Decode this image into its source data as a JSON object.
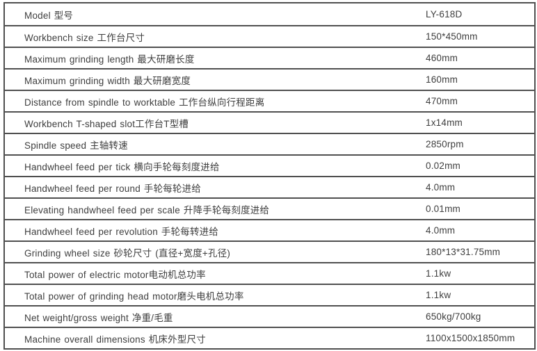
{
  "table": {
    "description": "Machine specification table",
    "model_value": "LY-618D",
    "colors": {
      "line": "#4f4f4f",
      "text": "#3e3e3e",
      "background": "#ffffff"
    },
    "rows": [
      {
        "label": "Model 型号",
        "value": "LY-618D"
      },
      {
        "label": "Workbench size 工作台尺寸",
        "value": "150*450mm"
      },
      {
        "label": "Maximum grinding length 最大研磨长度",
        "value": "460mm"
      },
      {
        "label": "Maximum grinding width 最大研磨宽度",
        "value": "160mm"
      },
      {
        "label": "Distance from spindle to worktable 工作台纵向行程距离",
        "value": "470mm"
      },
      {
        "label": "Workbench T-shaped slot工作台T型槽",
        "value": "1x14mm"
      },
      {
        "label": "Spindle speed 主轴转速",
        "value": "2850rpm"
      },
      {
        "label": "Handwheel feed per tick 横向手轮每刻度进给",
        "value": "0.02mm"
      },
      {
        "label": "Handwheel feed per round 手轮每轮进给",
        "value": "4.0mm"
      },
      {
        "label": "Elevating handwheel feed per scale 升降手轮每刻度进给",
        "value": "0.01mm"
      },
      {
        "label": "Handwheel feed per revolution 手轮每转进给",
        "value": "4.0mm"
      },
      {
        "label": "Grinding wheel size 砂轮尺寸 (直径+宽度+孔径)",
        "value": "180*13*31.75mm"
      },
      {
        "label": "Total power of electric motor电动机总功率",
        "value": "1.1kw"
      },
      {
        "label": "Total power of grinding head motor磨头电机总功率",
        "value": "1.1kw"
      },
      {
        "label": "Net weight/gross weight 净重/毛重",
        "value": "650kg/700kg"
      },
      {
        "label": "Machine overall dimensions 机床外型尺寸",
        "value": "1100x1500x1850mm"
      }
    ]
  }
}
